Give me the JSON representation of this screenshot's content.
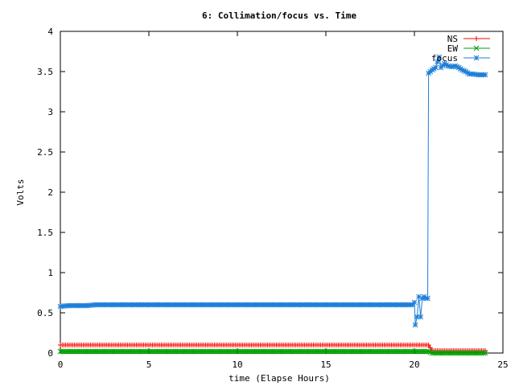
{
  "chart_data": {
    "type": "line",
    "title": "6: Collimation/focus vs. Time",
    "xlabel": "time (Elapse Hours)",
    "ylabel": "Volts",
    "xlim": [
      0,
      25
    ],
    "ylim": [
      0,
      4
    ],
    "x_ticks": [
      0,
      5,
      10,
      15,
      20,
      25
    ],
    "y_ticks": [
      0,
      0.5,
      1,
      1.5,
      2,
      2.5,
      3,
      3.5,
      4
    ],
    "x_tick_labels": [
      "0",
      "5",
      "10",
      "15",
      "20",
      "25"
    ],
    "y_tick_labels": [
      "0",
      "0.5",
      "1",
      "1.5",
      "2",
      "2.5",
      "3",
      "3.5",
      "4"
    ],
    "grid": false,
    "legend_position": "top-right",
    "series": [
      {
        "name": "NS",
        "color": "#ff0000",
        "marker": "plus",
        "points": [
          [
            0,
            0.1
          ],
          [
            20.6,
            0.1
          ],
          [
            20.8,
            0.1
          ],
          [
            21.0,
            0.03
          ],
          [
            24.0,
            0.03
          ]
        ]
      },
      {
        "name": "EW",
        "color": "#00a000",
        "marker": "cross",
        "points": [
          [
            0,
            0.02
          ],
          [
            20.6,
            0.02
          ],
          [
            20.8,
            0.02
          ],
          [
            21.0,
            0.0
          ],
          [
            24.0,
            0.0
          ]
        ]
      },
      {
        "name": "focus",
        "color": "#1e7fd8",
        "marker": "star",
        "points": [
          [
            0,
            0.58
          ],
          [
            0.5,
            0.59
          ],
          [
            1.0,
            0.59
          ],
          [
            1.5,
            0.59
          ],
          [
            2.0,
            0.6
          ],
          [
            19.6,
            0.6
          ],
          [
            19.9,
            0.6
          ],
          [
            20.0,
            0.63
          ],
          [
            20.05,
            0.35
          ],
          [
            20.15,
            0.45
          ],
          [
            20.25,
            0.7
          ],
          [
            20.35,
            0.45
          ],
          [
            20.45,
            0.68
          ],
          [
            20.55,
            0.7
          ],
          [
            20.65,
            0.68
          ],
          [
            20.75,
            0.68
          ],
          [
            20.8,
            3.48
          ],
          [
            21.0,
            3.52
          ],
          [
            21.2,
            3.55
          ],
          [
            21.3,
            3.62
          ],
          [
            21.4,
            3.68
          ],
          [
            21.5,
            3.55
          ],
          [
            21.7,
            3.6
          ],
          [
            21.9,
            3.57
          ],
          [
            22.1,
            3.56
          ],
          [
            22.3,
            3.57
          ],
          [
            22.5,
            3.55
          ],
          [
            22.7,
            3.52
          ],
          [
            22.9,
            3.5
          ],
          [
            23.1,
            3.47
          ],
          [
            23.3,
            3.47
          ],
          [
            23.6,
            3.46
          ],
          [
            24.0,
            3.46
          ]
        ]
      }
    ]
  }
}
